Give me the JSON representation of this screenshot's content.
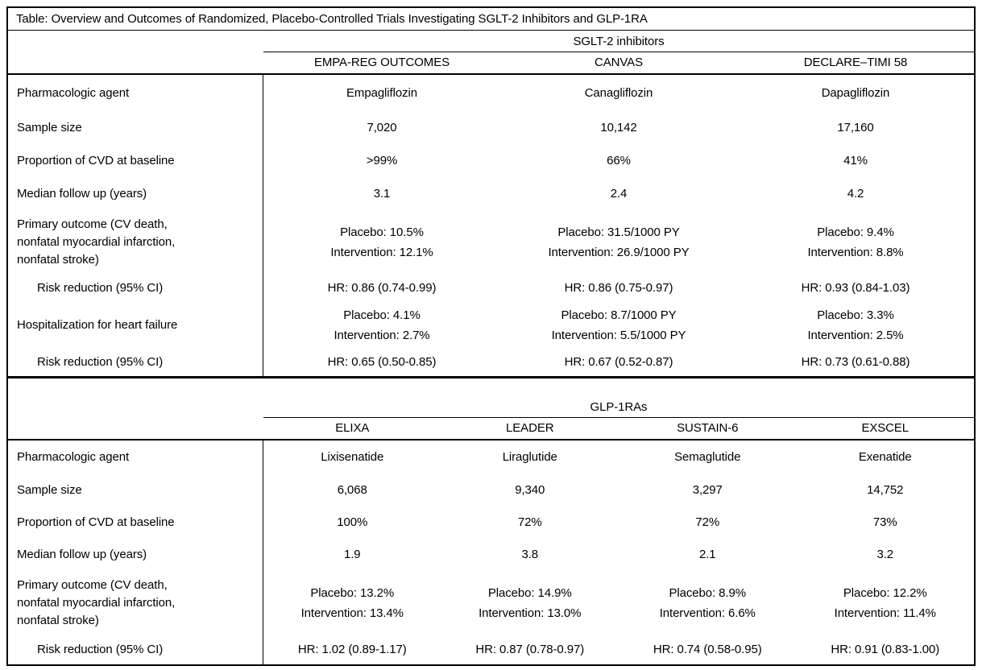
{
  "title": "Table: Overview and Outcomes of Randomized, Placebo-Controlled Trials Investigating SGLT-2 Inhibitors and GLP-1RA",
  "tables": [
    {
      "group": "SGLT-2 inhibitors",
      "trials": [
        "EMPA-REG OUTCOMES",
        "CANVAS",
        "DECLARE–TIMI 58"
      ],
      "rows": [
        {
          "label": "Pharmacologic agent",
          "cells": [
            "Empagliflozin",
            "Canagliflozin",
            "Dapagliflozin"
          ]
        },
        {
          "label": "Sample size",
          "cells": [
            "7,020",
            "10,142",
            "17,160"
          ]
        },
        {
          "label": "Proportion of CVD at baseline",
          "cells": [
            ">99%",
            "66%",
            "41%"
          ]
        },
        {
          "label": "Median follow up (years)",
          "cells": [
            "3.1",
            "2.4",
            "4.2"
          ]
        },
        {
          "label": "Primary outcome (CV death,\nnonfatal myocardial infarction,\nnonfatal stroke)",
          "cells": [
            "Placebo: 10.5%\nIntervention: 12.1%",
            "Placebo: 31.5/1000 PY\nIntervention: 26.9/1000 PY",
            "Placebo: 9.4%\nIntervention: 8.8%"
          ]
        },
        {
          "label": "Risk reduction (95% CI)",
          "cells": [
            "HR: 0.86 (0.74-0.99)",
            "HR: 0.86 (0.75-0.97)",
            "HR: 0.93 (0.84-1.03)"
          ]
        },
        {
          "label": "Hospitalization for heart failure",
          "cells": [
            "Placebo: 4.1%\nIntervention: 2.7%",
            "Placebo: 8.7/1000 PY\nIntervention: 5.5/1000 PY",
            "Placebo: 3.3%\nIntervention: 2.5%"
          ]
        },
        {
          "label": "Risk reduction (95% CI)",
          "cells": [
            "HR: 0.65 (0.50-0.85)",
            "HR: 0.67 (0.52-0.87)",
            "HR: 0.73 (0.61-0.88)"
          ]
        }
      ]
    },
    {
      "group": "GLP-1RAs",
      "trials": [
        "ELIXA",
        "LEADER",
        "SUSTAIN-6",
        "EXSCEL"
      ],
      "rows": [
        {
          "label": "Pharmacologic agent",
          "cells": [
            "Lixisenatide",
            "Liraglutide",
            "Semaglutide",
            "Exenatide"
          ]
        },
        {
          "label": "Sample size",
          "cells": [
            "6,068",
            "9,340",
            "3,297",
            "14,752"
          ]
        },
        {
          "label": "Proportion of CVD at baseline",
          "cells": [
            "100%",
            "72%",
            "72%",
            "73%"
          ]
        },
        {
          "label": "Median follow up (years)",
          "cells": [
            "1.9",
            "3.8",
            "2.1",
            "3.2"
          ]
        },
        {
          "label": "Primary outcome (CV death,\nnonfatal myocardial infarction,\nnonfatal stroke)",
          "cells": [
            "Placebo: 13.2%\nIntervention: 13.4%",
            "Placebo: 14.9%\nIntervention: 13.0%",
            "Placebo: 8.9%\nIntervention: 6.6%",
            "Placebo: 12.2%\nIntervention: 11.4%"
          ]
        },
        {
          "label": "Risk reduction (95% CI)",
          "cells": [
            "HR: 1.02 (0.89-1.17)",
            "HR: 0.87 (0.78-0.97)",
            "HR: 0.74 (0.58-0.95)",
            "HR: 0.91 (0.83-1.00)"
          ]
        }
      ]
    }
  ]
}
